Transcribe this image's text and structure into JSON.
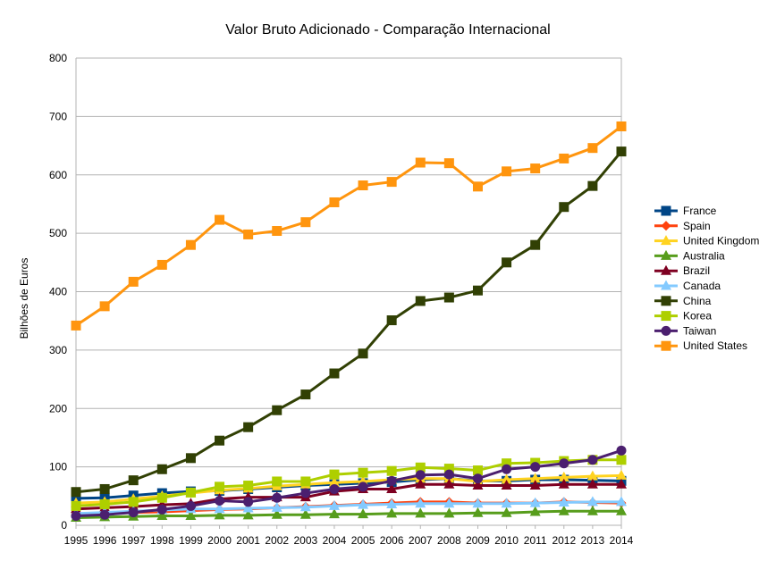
{
  "chart_data": {
    "type": "line",
    "title": "Valor Bruto Adicionado - Comparação Internacional",
    "ylabel": "Bilhões de Euros",
    "xlabel": "",
    "ylim": [
      0,
      800
    ],
    "yticks": [
      0,
      100,
      200,
      300,
      400,
      500,
      600,
      700,
      800
    ],
    "grid": true,
    "legend_position": "right",
    "categories": [
      "1995",
      "1996",
      "1997",
      "1998",
      "1999",
      "2000",
      "2001",
      "2002",
      "2003",
      "2004",
      "2005",
      "2006",
      "2007",
      "2008",
      "2009",
      "2010",
      "2011",
      "2012",
      "2013",
      "2014"
    ],
    "series": [
      {
        "name": "France",
        "color": "#004586",
        "marker": "square",
        "values": [
          46,
          47,
          51,
          55,
          58,
          59,
          62,
          65,
          68,
          70,
          72,
          74,
          78,
          80,
          76,
          76,
          78,
          78,
          77,
          76
        ]
      },
      {
        "name": "Spain",
        "color": "#ff420e",
        "marker": "diamond",
        "values": [
          18,
          20,
          22,
          23,
          25,
          27,
          28,
          30,
          32,
          34,
          36,
          38,
          40,
          40,
          38,
          38,
          38,
          40,
          39,
          38
        ]
      },
      {
        "name": "United Kingdom",
        "color": "#ffd320",
        "marker": "triangle",
        "values": [
          38,
          40,
          45,
          50,
          55,
          60,
          63,
          67,
          70,
          73,
          75,
          78,
          80,
          80,
          75,
          78,
          80,
          82,
          84,
          85
        ]
      },
      {
        "name": "Australia",
        "color": "#579d1c",
        "marker": "triangle",
        "values": [
          13,
          14,
          15,
          16,
          16,
          17,
          17,
          18,
          18,
          19,
          19,
          20,
          20,
          20,
          21,
          21,
          23,
          24,
          24,
          24
        ]
      },
      {
        "name": "Brazil",
        "color": "#7e0021",
        "marker": "triangle",
        "values": [
          28,
          30,
          32,
          35,
          37,
          45,
          48,
          48,
          48,
          58,
          62,
          62,
          70,
          70,
          68,
          68,
          68,
          70,
          70,
          70
        ]
      },
      {
        "name": "Canada",
        "color": "#83caff",
        "marker": "triangle",
        "values": [
          20,
          22,
          24,
          26,
          28,
          28,
          29,
          30,
          31,
          33,
          35,
          36,
          37,
          37,
          37,
          37,
          38,
          39,
          40,
          40
        ]
      },
      {
        "name": "China",
        "color": "#314004",
        "marker": "square",
        "values": [
          57,
          62,
          77,
          96,
          115,
          145,
          168,
          197,
          224,
          260,
          294,
          351,
          384,
          390,
          402,
          450,
          480,
          545,
          581,
          640
        ]
      },
      {
        "name": "Korea",
        "color": "#aecf00",
        "marker": "square",
        "values": [
          33,
          36,
          40,
          47,
          56,
          66,
          68,
          75,
          75,
          87,
          90,
          93,
          99,
          97,
          94,
          106,
          107,
          110,
          112,
          112
        ]
      },
      {
        "name": "Taiwan",
        "color": "#4b1f6f",
        "marker": "circle",
        "values": [
          16,
          18,
          22,
          27,
          33,
          42,
          40,
          47,
          55,
          62,
          66,
          76,
          86,
          87,
          80,
          96,
          100,
          106,
          112,
          128
        ]
      },
      {
        "name": "United States",
        "color": "#ff950e",
        "marker": "square",
        "values": [
          342,
          375,
          417,
          446,
          480,
          523,
          498,
          504,
          519,
          553,
          582,
          588,
          621,
          620,
          580,
          606,
          611,
          628,
          646,
          683
        ]
      }
    ]
  }
}
